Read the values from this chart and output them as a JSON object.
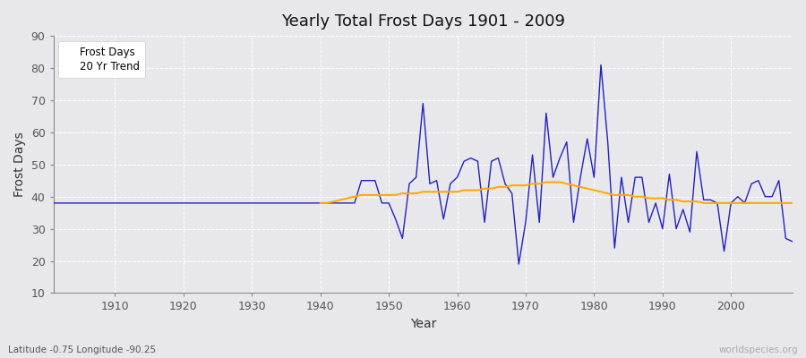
{
  "title": "Yearly Total Frost Days 1901 - 2009",
  "xlabel": "Year",
  "ylabel": "Frost Days",
  "bottom_left_label": "Latitude -0.75 Longitude -90.25",
  "bottom_right_label": "worldspecies.org",
  "legend_labels": [
    "Frost Days",
    "20 Yr Trend"
  ],
  "line_color_frost": "#2222bb",
  "line_color_trend": "#ffaa00",
  "bg_color": "#e8e8ec",
  "fig_bg_color": "#e8e8ec",
  "ylim": [
    10,
    90
  ],
  "yticks": [
    10,
    20,
    30,
    40,
    50,
    60,
    70,
    80,
    90
  ],
  "xlim": [
    1901,
    2009
  ],
  "xticks": [
    1910,
    1920,
    1930,
    1940,
    1950,
    1960,
    1970,
    1980,
    1990,
    2000
  ],
  "years": [
    1901,
    1902,
    1903,
    1904,
    1905,
    1906,
    1907,
    1908,
    1909,
    1910,
    1911,
    1912,
    1913,
    1914,
    1915,
    1916,
    1917,
    1918,
    1919,
    1920,
    1921,
    1922,
    1923,
    1924,
    1925,
    1926,
    1927,
    1928,
    1929,
    1930,
    1931,
    1932,
    1933,
    1934,
    1935,
    1936,
    1937,
    1938,
    1939,
    1940,
    1941,
    1942,
    1943,
    1944,
    1945,
    1946,
    1947,
    1948,
    1949,
    1950,
    1951,
    1952,
    1953,
    1954,
    1955,
    1956,
    1957,
    1958,
    1959,
    1960,
    1961,
    1962,
    1963,
    1964,
    1965,
    1966,
    1967,
    1968,
    1969,
    1970,
    1971,
    1972,
    1973,
    1974,
    1975,
    1976,
    1977,
    1978,
    1979,
    1980,
    1981,
    1982,
    1983,
    1984,
    1985,
    1986,
    1987,
    1988,
    1989,
    1990,
    1991,
    1992,
    1993,
    1994,
    1995,
    1996,
    1997,
    1998,
    1999,
    2000,
    2001,
    2002,
    2003,
    2004,
    2005,
    2006,
    2007,
    2008,
    2009
  ],
  "frost_days": [
    38,
    38,
    38,
    38,
    38,
    38,
    38,
    38,
    38,
    38,
    38,
    38,
    38,
    38,
    38,
    38,
    38,
    38,
    38,
    38,
    38,
    38,
    38,
    38,
    38,
    38,
    38,
    38,
    38,
    38,
    38,
    38,
    38,
    38,
    38,
    38,
    38,
    38,
    38,
    38,
    38,
    38,
    38,
    38,
    38,
    45,
    45,
    45,
    38,
    38,
    33,
    27,
    44,
    46,
    69,
    44,
    45,
    33,
    44,
    46,
    51,
    52,
    51,
    32,
    51,
    52,
    44,
    41,
    19,
    32,
    53,
    32,
    66,
    46,
    52,
    57,
    32,
    46,
    58,
    46,
    81,
    57,
    24,
    46,
    32,
    46,
    46,
    32,
    38,
    30,
    47,
    30,
    36,
    29,
    54,
    39,
    39,
    38,
    23,
    38,
    40,
    38,
    44,
    45,
    40,
    40,
    45,
    27,
    26
  ],
  "trend_years": [
    1940,
    1941,
    1942,
    1943,
    1944,
    1945,
    1946,
    1947,
    1948,
    1949,
    1950,
    1951,
    1952,
    1953,
    1954,
    1955,
    1956,
    1957,
    1958,
    1959,
    1960,
    1961,
    1962,
    1963,
    1964,
    1965,
    1966,
    1967,
    1968,
    1969,
    1970,
    1971,
    1972,
    1973,
    1974,
    1975,
    1976,
    1977,
    1978,
    1979,
    1980,
    1981,
    1982,
    1983,
    1984,
    1985,
    1986,
    1987,
    1988,
    1989,
    1990,
    1991,
    1992,
    1993,
    1994,
    1995,
    1996,
    1997,
    1998,
    1999,
    2000,
    2001,
    2002,
    2003,
    2004,
    2005,
    2006,
    2007,
    2008,
    2009
  ],
  "trend_values": [
    38.0,
    38.0,
    38.5,
    39.0,
    39.5,
    40.0,
    40.5,
    40.5,
    40.5,
    40.5,
    40.5,
    40.5,
    41.0,
    41.0,
    41.0,
    41.5,
    41.5,
    41.5,
    41.5,
    41.5,
    41.5,
    42.0,
    42.0,
    42.0,
    42.5,
    42.5,
    43.0,
    43.0,
    43.5,
    43.5,
    43.5,
    44.0,
    44.0,
    44.5,
    44.5,
    44.5,
    44.0,
    43.5,
    43.0,
    42.5,
    42.0,
    41.5,
    41.0,
    40.5,
    40.5,
    40.5,
    40.0,
    40.0,
    39.5,
    39.5,
    39.5,
    39.0,
    39.0,
    38.5,
    38.5,
    38.5,
    38.0,
    38.0,
    38.0,
    38.0,
    38.0,
    38.0,
    38.0,
    38.0,
    38.0,
    38.0,
    38.0,
    38.0,
    38.0,
    38.0
  ]
}
